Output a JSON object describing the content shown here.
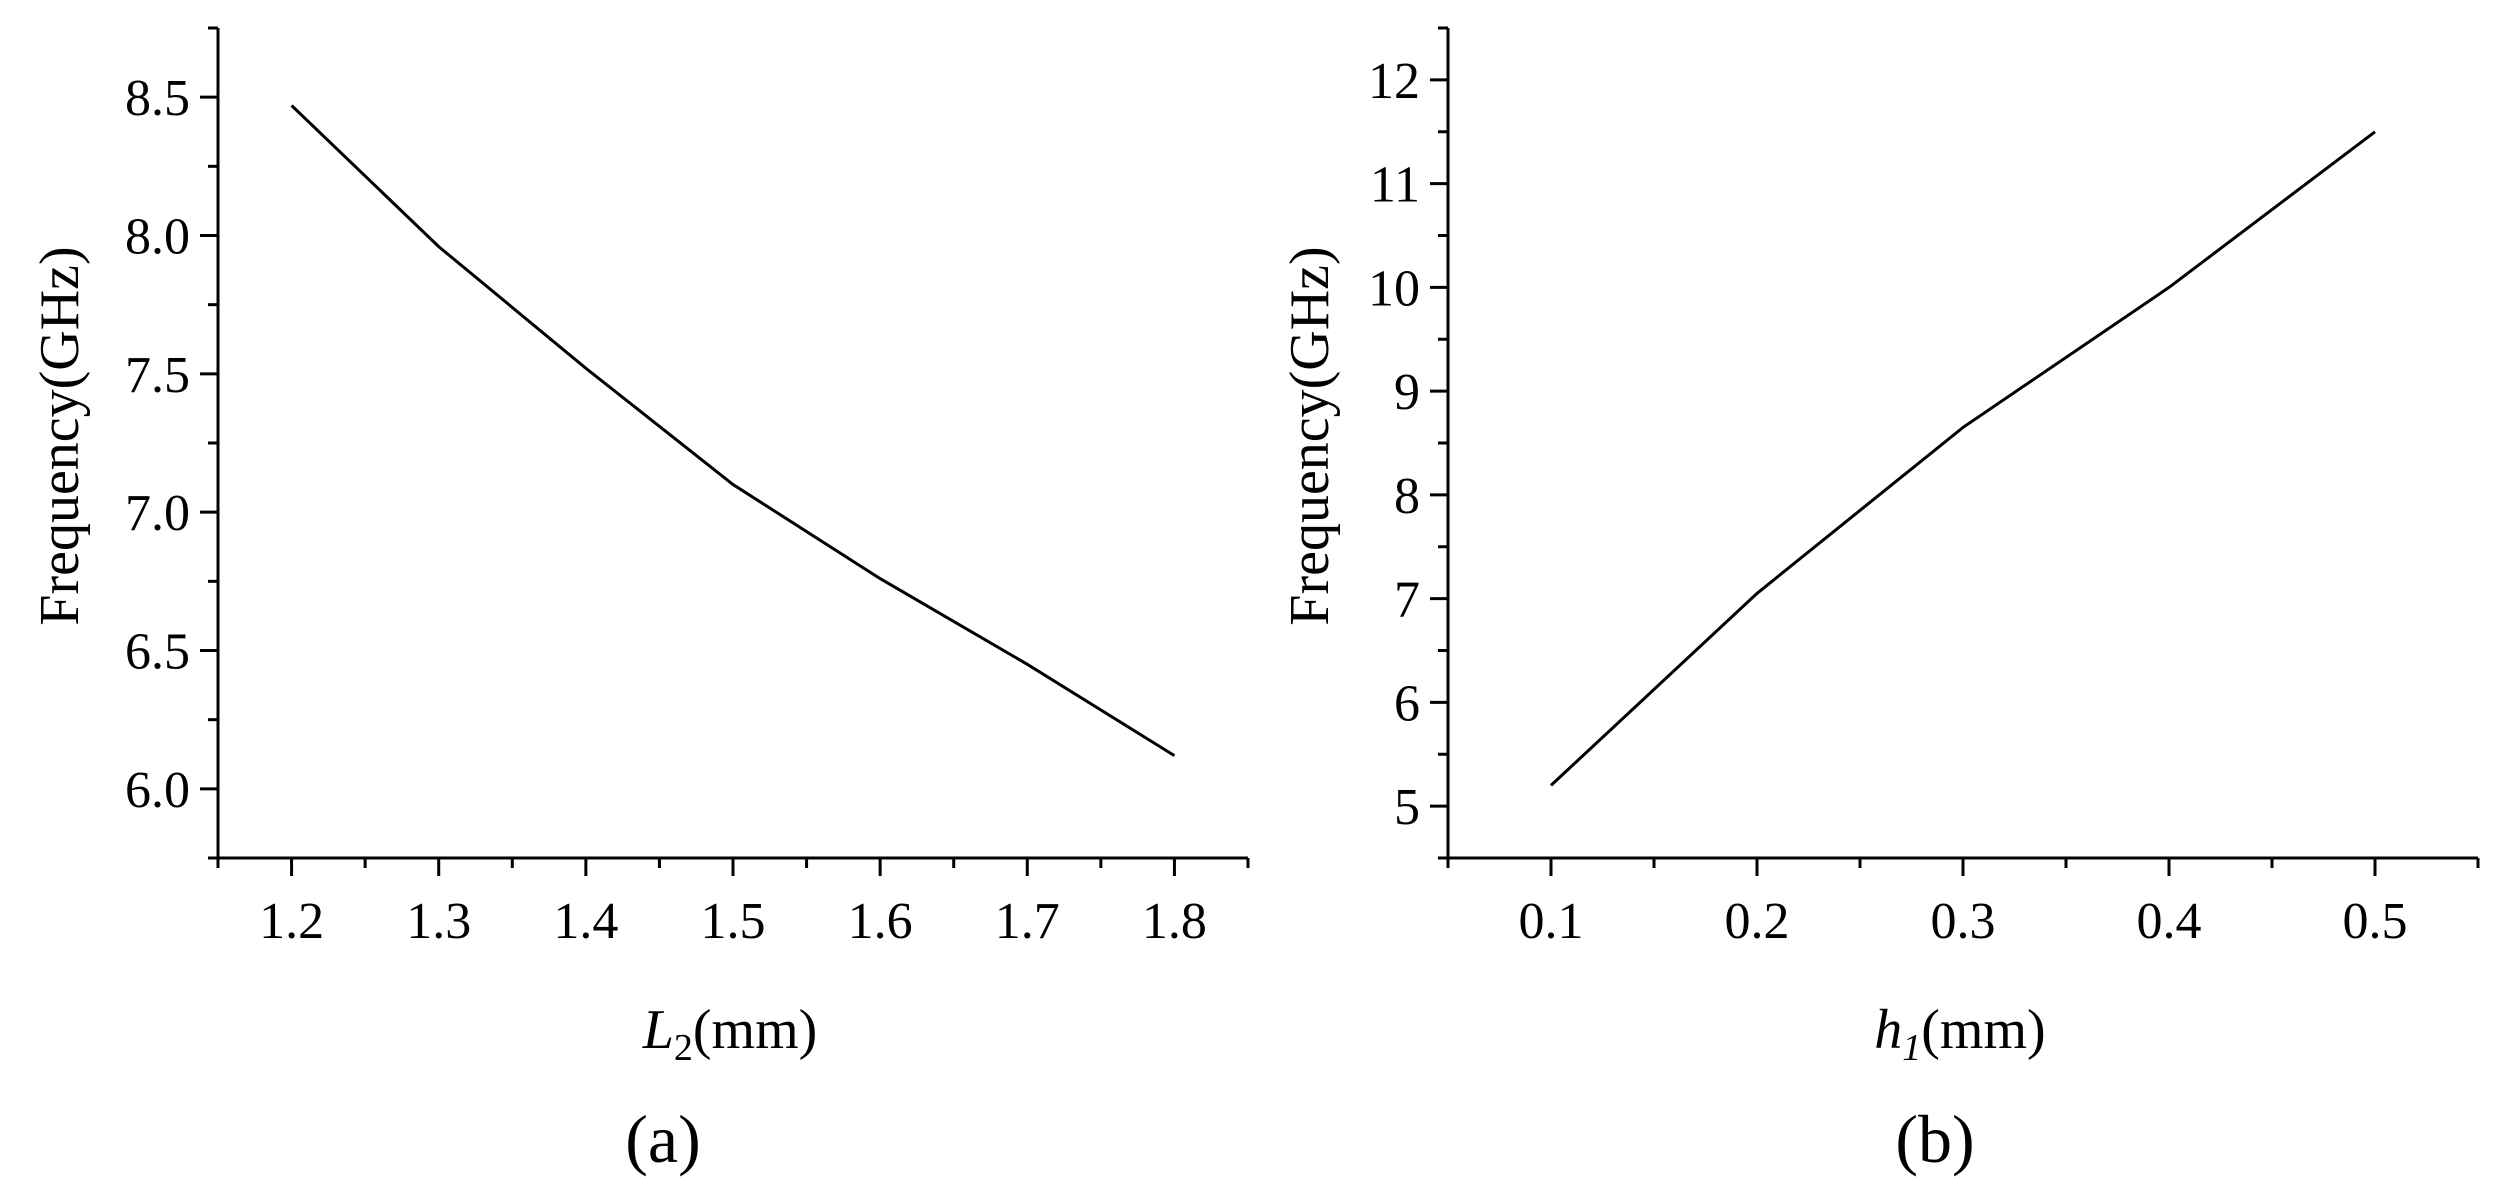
{
  "chart_data": [
    {
      "type": "line",
      "panel_label": "(a)",
      "xlabel": {
        "symbol": "L",
        "subscript": "2",
        "unit": "(mm)"
      },
      "ylabel": "Frequency(GHz)",
      "x_ticks": [
        "1.2",
        "1.3",
        "1.4",
        "1.5",
        "1.6",
        "1.7",
        "1.8"
      ],
      "y_ticks": [
        "6.0",
        "6.5",
        "7.0",
        "7.5",
        "8.0",
        "8.5"
      ],
      "xlim": [
        1.15,
        1.85
      ],
      "ylim": [
        5.75,
        8.75
      ],
      "grid": false,
      "series": [
        {
          "x": [
            1.2,
            1.3,
            1.4,
            1.5,
            1.6,
            1.7,
            1.8
          ],
          "y": [
            8.47,
            7.96,
            7.52,
            7.1,
            6.76,
            6.45,
            6.12
          ]
        }
      ]
    },
    {
      "type": "line",
      "panel_label": "(b)",
      "xlabel": {
        "symbol": "h",
        "subscript": "1",
        "unit": "(mm)"
      },
      "ylabel": "Frequency(GHz)",
      "x_ticks": [
        "0.1",
        "0.2",
        "0.3",
        "0.4",
        "0.5"
      ],
      "y_ticks": [
        "5",
        "6",
        "7",
        "8",
        "9",
        "10",
        "11",
        "12"
      ],
      "xlim": [
        0.05,
        0.55
      ],
      "ylim": [
        4.5,
        12.5
      ],
      "grid": false,
      "series": [
        {
          "x": [
            0.1,
            0.2,
            0.3,
            0.4,
            0.5
          ],
          "y": [
            5.2,
            7.05,
            8.65,
            10.0,
            11.5
          ]
        }
      ]
    }
  ]
}
